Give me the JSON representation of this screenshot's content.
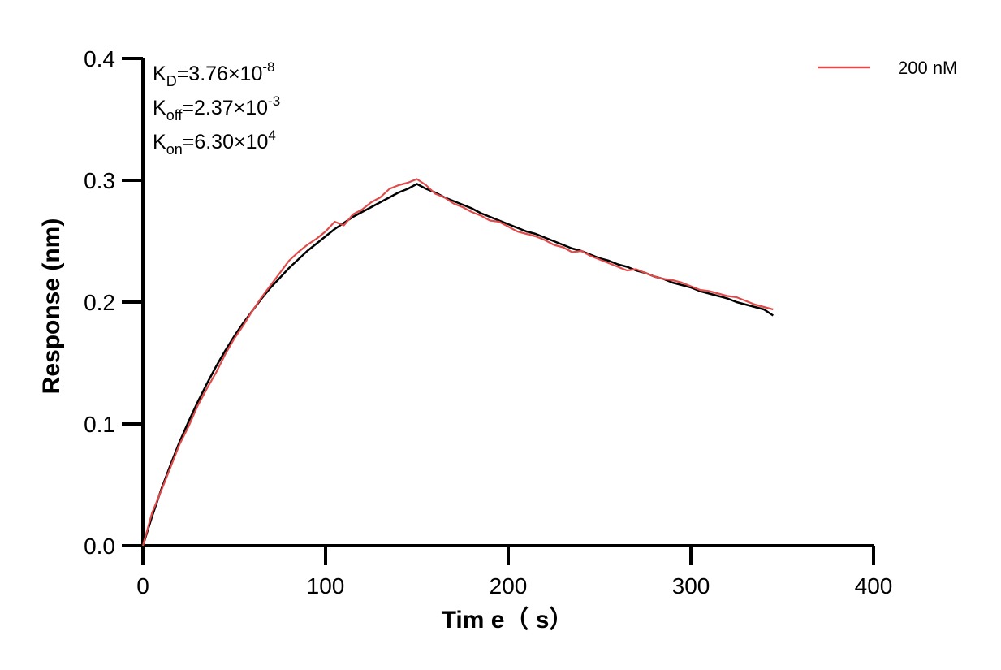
{
  "chart_data": {
    "type": "line",
    "xlabel": "Tim e（ s）",
    "ylabel": "Response (nm)",
    "xlim": [
      0,
      400
    ],
    "ylim": [
      0,
      0.4
    ],
    "xticks": [
      "0",
      "100",
      "200",
      "300",
      "400"
    ],
    "yticks": [
      "0.0",
      "0.1",
      "0.2",
      "0.3",
      "0.4"
    ],
    "grid": false,
    "legend_position": "top-right",
    "annotations": [
      {
        "base": "K",
        "sub": "D",
        "eq": "=3.76×10",
        "sup": "-8"
      },
      {
        "base": "K",
        "sub": "off",
        "eq": "=2.37×10",
        "sup": "-3"
      },
      {
        "base": "K",
        "sub": "on",
        "eq": "=6.30×10",
        "sup": "4"
      }
    ],
    "series": [
      {
        "name": "200 nM",
        "color": "#e04b4b",
        "x": [
          0,
          5,
          10,
          15,
          20,
          25,
          30,
          35,
          40,
          45,
          50,
          55,
          60,
          65,
          70,
          75,
          80,
          85,
          90,
          95,
          100,
          105,
          110,
          115,
          120,
          125,
          130,
          135,
          140,
          145,
          150,
          155,
          160,
          165,
          170,
          175,
          180,
          185,
          190,
          195,
          200,
          205,
          210,
          215,
          220,
          225,
          230,
          235,
          240,
          245,
          250,
          255,
          260,
          265,
          270,
          275,
          280,
          285,
          290,
          295,
          300,
          305,
          310,
          315,
          320,
          325,
          330,
          335,
          340,
          345
        ],
        "y": [
          0.0,
          0.027,
          0.045,
          0.064,
          0.083,
          0.098,
          0.115,
          0.129,
          0.142,
          0.157,
          0.17,
          0.181,
          0.193,
          0.204,
          0.214,
          0.224,
          0.234,
          0.241,
          0.247,
          0.252,
          0.258,
          0.266,
          0.263,
          0.272,
          0.276,
          0.282,
          0.286,
          0.293,
          0.296,
          0.298,
          0.301,
          0.296,
          0.289,
          0.286,
          0.281,
          0.278,
          0.274,
          0.271,
          0.267,
          0.266,
          0.262,
          0.258,
          0.256,
          0.254,
          0.251,
          0.247,
          0.245,
          0.241,
          0.242,
          0.238,
          0.235,
          0.232,
          0.229,
          0.226,
          0.227,
          0.224,
          0.221,
          0.219,
          0.218,
          0.216,
          0.213,
          0.21,
          0.209,
          0.207,
          0.205,
          0.204,
          0.201,
          0.198,
          0.196,
          0.194
        ]
      },
      {
        "color": "#000000",
        "x": [
          0,
          5,
          10,
          15,
          20,
          25,
          30,
          35,
          40,
          45,
          50,
          55,
          60,
          65,
          70,
          75,
          80,
          85,
          90,
          95,
          100,
          105,
          110,
          115,
          120,
          125,
          130,
          135,
          140,
          145,
          150,
          155,
          160,
          165,
          170,
          175,
          180,
          185,
          190,
          195,
          200,
          205,
          210,
          215,
          220,
          225,
          230,
          235,
          240,
          245,
          250,
          255,
          260,
          265,
          270,
          275,
          280,
          285,
          290,
          295,
          300,
          305,
          310,
          315,
          320,
          325,
          330,
          335,
          340,
          345
        ],
        "y": [
          0.0,
          0.024,
          0.046,
          0.066,
          0.085,
          0.102,
          0.118,
          0.133,
          0.147,
          0.16,
          0.172,
          0.183,
          0.193,
          0.203,
          0.212,
          0.22,
          0.228,
          0.235,
          0.242,
          0.248,
          0.254,
          0.26,
          0.265,
          0.27,
          0.274,
          0.278,
          0.282,
          0.286,
          0.29,
          0.293,
          0.297,
          0.293,
          0.29,
          0.286,
          0.283,
          0.28,
          0.277,
          0.273,
          0.27,
          0.267,
          0.264,
          0.261,
          0.258,
          0.256,
          0.253,
          0.25,
          0.247,
          0.244,
          0.242,
          0.239,
          0.236,
          0.234,
          0.231,
          0.229,
          0.226,
          0.224,
          0.221,
          0.219,
          0.216,
          0.214,
          0.212,
          0.209,
          0.207,
          0.205,
          0.203,
          0.2,
          0.198,
          0.196,
          0.194,
          0.189
        ]
      }
    ]
  }
}
